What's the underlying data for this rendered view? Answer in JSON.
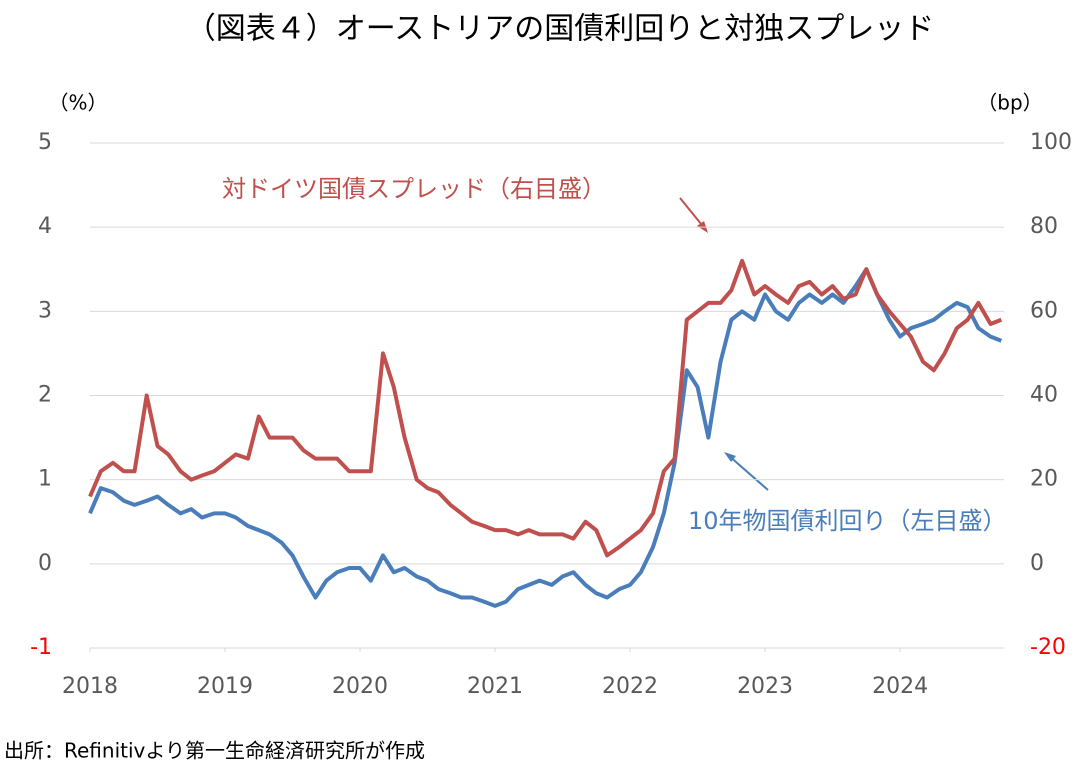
{
  "chart_data": {
    "type": "line",
    "title": "（図表４）オーストリアの国債利回りと対独スプレッド",
    "ylabel": "（%）",
    "y2label": "（bp）",
    "source": "出所：Refinitivより第一生命経済研究所が作成",
    "annotations": [
      "対ドイツ国債スプレッド（右目盛）",
      "10年物国債利回り（左目盛）"
    ],
    "xlim": [
      2018,
      2024.74
    ],
    "xticks": [
      2018,
      2019,
      2020,
      2021,
      2022,
      2023,
      2024
    ],
    "ylim": [
      -1,
      5
    ],
    "yticks": [
      -1,
      0,
      1,
      2,
      3,
      4,
      5
    ],
    "y2lim": [
      -20,
      100
    ],
    "y2ticks": [
      -20,
      0,
      20,
      40,
      60,
      80,
      100
    ],
    "negative_tick_color": "#ff0000",
    "grid": true,
    "x": [
      2018.0,
      2018.08,
      2018.17,
      2018.25,
      2018.33,
      2018.42,
      2018.5,
      2018.58,
      2018.67,
      2018.75,
      2018.83,
      2018.92,
      2019.0,
      2019.08,
      2019.17,
      2019.25,
      2019.33,
      2019.42,
      2019.5,
      2019.58,
      2019.67,
      2019.75,
      2019.83,
      2019.92,
      2020.0,
      2020.08,
      2020.17,
      2020.25,
      2020.33,
      2020.42,
      2020.5,
      2020.58,
      2020.67,
      2020.75,
      2020.83,
      2020.92,
      2021.0,
      2021.08,
      2021.17,
      2021.25,
      2021.33,
      2021.42,
      2021.5,
      2021.58,
      2021.67,
      2021.75,
      2021.83,
      2021.92,
      2022.0,
      2022.08,
      2022.17,
      2022.25,
      2022.33,
      2022.42,
      2022.5,
      2022.58,
      2022.67,
      2022.75,
      2022.83,
      2022.92,
      2023.0,
      2023.08,
      2023.17,
      2023.25,
      2023.33,
      2023.42,
      2023.5,
      2023.58,
      2023.67,
      2023.75,
      2023.83,
      2023.92,
      2024.0,
      2024.08,
      2024.17,
      2024.25,
      2024.33,
      2024.42,
      2024.5,
      2024.58,
      2024.67,
      2024.75
    ],
    "series": [
      {
        "name": "10年物国債利回り",
        "color": "#4a7ebb",
        "axis": "y",
        "values": [
          0.6,
          0.9,
          0.85,
          0.75,
          0.7,
          0.75,
          0.8,
          0.7,
          0.6,
          0.65,
          0.55,
          0.6,
          0.6,
          0.55,
          0.45,
          0.4,
          0.35,
          0.25,
          0.1,
          -0.15,
          -0.4,
          -0.2,
          -0.1,
          -0.05,
          -0.05,
          -0.2,
          0.1,
          -0.1,
          -0.05,
          -0.15,
          -0.2,
          -0.3,
          -0.35,
          -0.4,
          -0.4,
          -0.45,
          -0.5,
          -0.45,
          -0.3,
          -0.25,
          -0.2,
          -0.25,
          -0.15,
          -0.1,
          -0.25,
          -0.35,
          -0.4,
          -0.3,
          -0.25,
          -0.1,
          0.2,
          0.6,
          1.2,
          2.3,
          2.1,
          1.5,
          2.4,
          2.9,
          3.0,
          2.9,
          3.2,
          3.0,
          2.9,
          3.1,
          3.2,
          3.1,
          3.2,
          3.1,
          3.3,
          3.5,
          3.2,
          2.9,
          2.7,
          2.8,
          2.85,
          2.9,
          3.0,
          3.1,
          3.05,
          2.8,
          2.7,
          2.65
        ]
      },
      {
        "name": "対ドイツ国債スプレッド",
        "color": "#c0504d",
        "axis": "y2",
        "values": [
          16,
          22,
          24,
          22,
          22,
          40,
          28,
          26,
          22,
          20,
          21,
          22,
          24,
          26,
          25,
          35,
          30,
          30,
          30,
          27,
          25,
          25,
          25,
          22,
          22,
          22,
          50,
          42,
          30,
          20,
          18,
          17,
          14,
          12,
          10,
          9,
          8,
          8,
          7,
          8,
          7,
          7,
          7,
          6,
          10,
          8,
          2,
          4,
          6,
          8,
          12,
          22,
          25,
          58,
          60,
          62,
          62,
          65,
          72,
          64,
          66,
          64,
          62,
          66,
          67,
          64,
          66,
          63,
          64,
          70,
          64,
          60,
          57,
          54,
          48,
          46,
          50,
          56,
          58,
          62,
          57,
          58
        ]
      }
    ]
  }
}
